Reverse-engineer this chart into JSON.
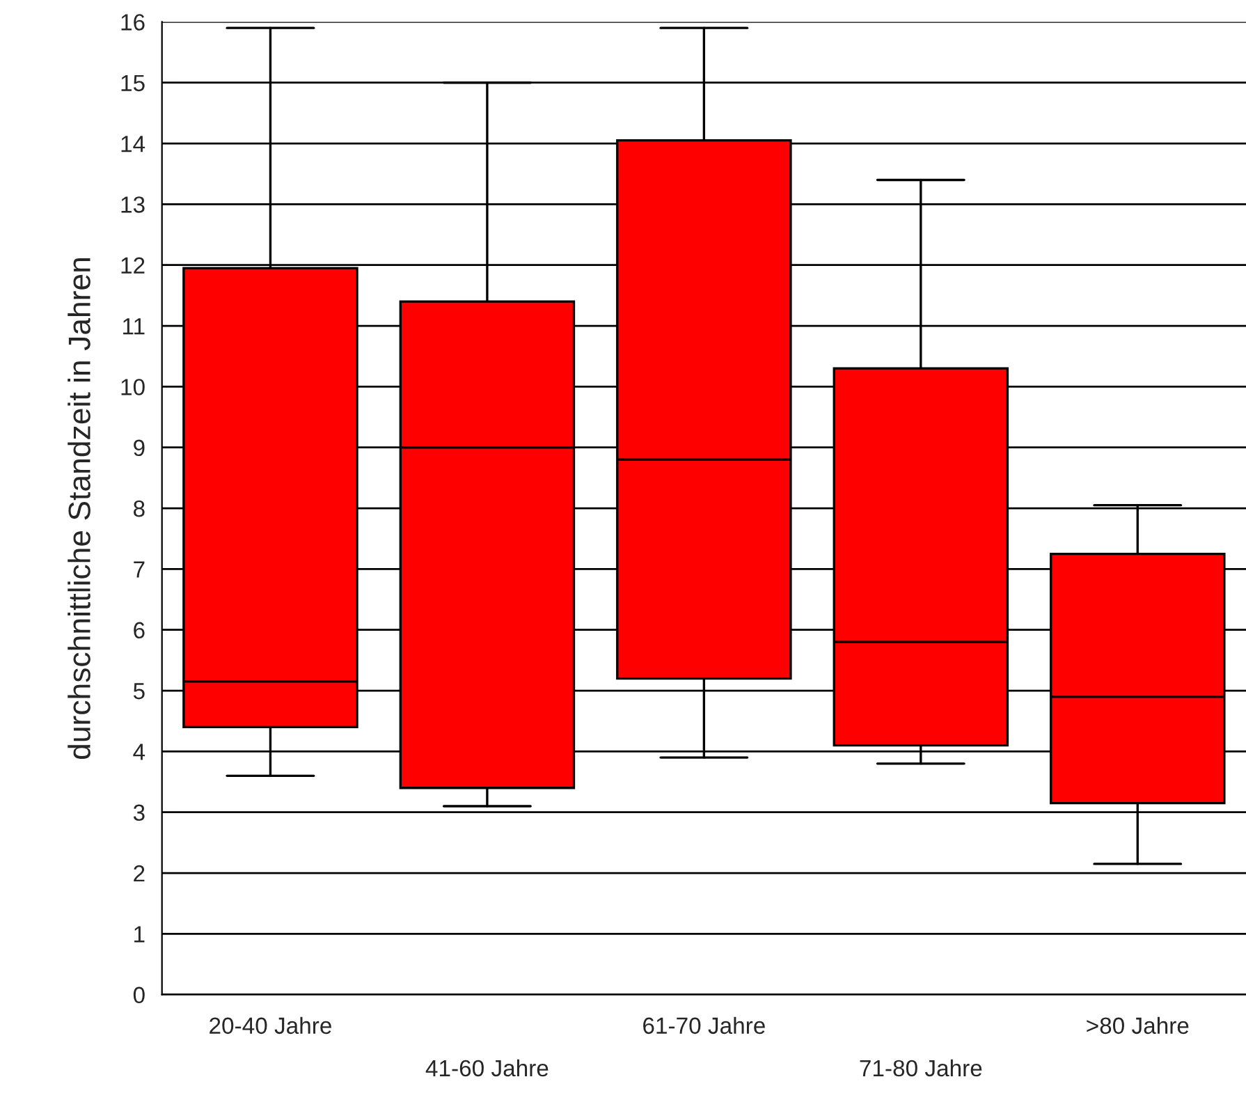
{
  "chart_data": {
    "type": "box",
    "ylabel": "durchschnittliche Standzeit in Jahren",
    "categories": [
      "20-40 Jahre",
      "41-60 Jahre",
      "61-70 Jahre",
      "71-80 Jahre",
      ">80 Jahre"
    ],
    "boxes": [
      {
        "low": 3.6,
        "q1": 4.4,
        "median": 5.15,
        "q3": 11.95,
        "high": 15.9
      },
      {
        "low": 3.1,
        "q1": 3.4,
        "median": 9.0,
        "q3": 11.4,
        "high": 15.0
      },
      {
        "low": 3.9,
        "q1": 5.2,
        "median": 8.8,
        "q3": 14.05,
        "high": 15.9
      },
      {
        "low": 3.8,
        "q1": 4.1,
        "median": 5.8,
        "q3": 10.3,
        "high": 13.4
      },
      {
        "low": 2.15,
        "q1": 3.15,
        "median": 4.9,
        "q3": 7.25,
        "high": 8.05
      }
    ],
    "color": "#ff0000",
    "ylim": [
      0,
      16
    ],
    "yticks": [
      0,
      1,
      2,
      3,
      4,
      5,
      6,
      7,
      8,
      9,
      10,
      11,
      12,
      13,
      14,
      15,
      16
    ],
    "grid": "y"
  }
}
